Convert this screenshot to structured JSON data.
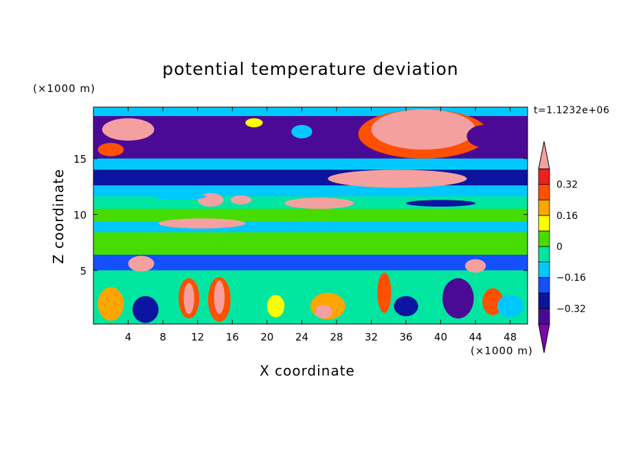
{
  "chart_data": {
    "type": "heatmap",
    "title": "potential temperature deviation",
    "xlabel": "X coordinate",
    "ylabel": "Z coordinate",
    "x_unit": "(×1000 m)",
    "y_unit": "(×1000 m)",
    "time_label": "t=1.1232e+06",
    "xlim": [
      0,
      50
    ],
    "ylim": [
      0.2,
      19.6
    ],
    "x_ticks": [
      4,
      8,
      12,
      16,
      20,
      24,
      28,
      32,
      36,
      40,
      44,
      48
    ],
    "y_ticks": [
      5,
      10,
      15
    ],
    "colorbar": {
      "levels": [
        -0.4,
        -0.32,
        -0.24,
        -0.16,
        -0.08,
        0,
        0.08,
        0.16,
        0.24,
        0.32,
        0.4
      ],
      "tick_labels": [
        "0.32",
        "0.16",
        "0",
        "−0.16",
        "−0.32"
      ],
      "tick_values": [
        0.32,
        0.16,
        0,
        -0.16,
        -0.32
      ],
      "colors": [
        "#7a0aa6",
        "#4b0a96",
        "#0a14a0",
        "#1450ff",
        "#00c8ff",
        "#00e6a0",
        "#46dc00",
        "#ffff00",
        "#ffa500",
        "#ff5000",
        "#f01e1e",
        "#f5a0a0"
      ]
    },
    "field_colors": {
      "background": "#46dc00",
      "bands": [
        {
          "z": [
            18.8,
            19.6
          ],
          "color": "#00c8ff"
        },
        {
          "z": [
            15.0,
            18.8
          ],
          "color": "#4b0a96"
        },
        {
          "z": [
            14.0,
            15.0
          ],
          "color": "#00c8ff"
        },
        {
          "z": [
            12.6,
            14.0
          ],
          "color": "#0a14a0"
        },
        {
          "z": [
            11.6,
            12.6
          ],
          "color": "#00c8ff"
        },
        {
          "z": [
            10.5,
            11.6
          ],
          "color": "#00e6a0"
        },
        {
          "z": [
            9.4,
            10.5
          ],
          "color": "#46dc00"
        },
        {
          "z": [
            8.4,
            9.4
          ],
          "color": "#00c8ff"
        },
        {
          "z": [
            6.4,
            8.4
          ],
          "color": "#46dc00"
        },
        {
          "z": [
            5.0,
            6.4
          ],
          "color": "#1450ff"
        },
        {
          "z": [
            0.2,
            5.0
          ],
          "color": "#00e6a0"
        }
      ]
    }
  }
}
